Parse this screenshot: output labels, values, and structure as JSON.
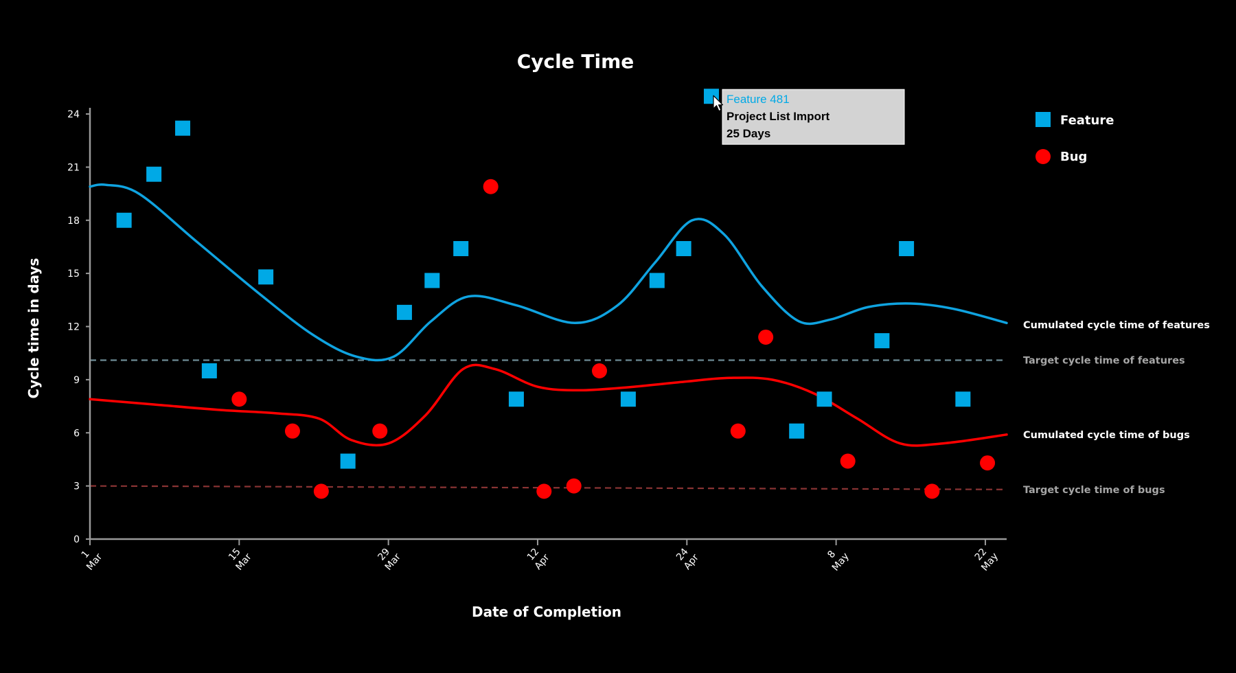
{
  "chart_data": {
    "type": "scatter",
    "title": "Cycle Time",
    "xlabel": "Date of Completion",
    "ylabel": "Cycle time in days",
    "ylim": [
      0,
      24
    ],
    "y_ticks": [
      "0",
      "3",
      "6",
      "9",
      "12",
      "15",
      "18",
      "21",
      "24"
    ],
    "x_range_days": [
      0,
      86
    ],
    "x_ticks": [
      {
        "day": 0,
        "line1": "1",
        "line2": "Mar"
      },
      {
        "day": 14,
        "line1": "15",
        "line2": "Mar"
      },
      {
        "day": 28,
        "line1": "29",
        "line2": "Mar"
      },
      {
        "day": 42,
        "line1": "12",
        "line2": "Apr"
      },
      {
        "day": 56,
        "line1": "24",
        "line2": "Apr"
      },
      {
        "day": 70,
        "line1": "8",
        "line2": "May"
      },
      {
        "day": 84,
        "line1": "22",
        "line2": "May"
      }
    ],
    "series": [
      {
        "name": "Feature",
        "marker": "square",
        "color": "#00a9e6",
        "points": [
          {
            "day": 3.2,
            "value": 18
          },
          {
            "day": 6.0,
            "value": 20.6
          },
          {
            "day": 8.7,
            "value": 23.2
          },
          {
            "day": 11.2,
            "value": 9.5
          },
          {
            "day": 16.5,
            "value": 14.8
          },
          {
            "day": 24.2,
            "value": 4.4
          },
          {
            "day": 29.5,
            "value": 12.8
          },
          {
            "day": 32.1,
            "value": 14.6
          },
          {
            "day": 34.8,
            "value": 16.4
          },
          {
            "day": 40.0,
            "value": 7.9
          },
          {
            "day": 50.5,
            "value": 7.9
          },
          {
            "day": 53.2,
            "value": 14.6
          },
          {
            "day": 55.7,
            "value": 16.4
          },
          {
            "day": 58.3,
            "value": 25
          },
          {
            "day": 66.3,
            "value": 6.1
          },
          {
            "day": 68.9,
            "value": 7.9
          },
          {
            "day": 74.3,
            "value": 11.2
          },
          {
            "day": 76.6,
            "value": 16.4
          },
          {
            "day": 81.9,
            "value": 7.9
          }
        ]
      },
      {
        "name": "Bug",
        "marker": "circle",
        "color": "#ff0000",
        "points": [
          {
            "day": 14.0,
            "value": 7.9
          },
          {
            "day": 19.0,
            "value": 6.1
          },
          {
            "day": 21.7,
            "value": 2.7
          },
          {
            "day": 27.2,
            "value": 6.1
          },
          {
            "day": 37.6,
            "value": 19.9
          },
          {
            "day": 42.6,
            "value": 2.7
          },
          {
            "day": 45.4,
            "value": 3.0
          },
          {
            "day": 47.8,
            "value": 9.5
          },
          {
            "day": 60.8,
            "value": 6.1
          },
          {
            "day": 63.4,
            "value": 11.4
          },
          {
            "day": 71.1,
            "value": 4.4
          },
          {
            "day": 79.0,
            "value": 2.7
          },
          {
            "day": 84.2,
            "value": 4.3
          }
        ]
      }
    ],
    "trend_lines": [
      {
        "name": "Cumulated cycle time of features",
        "color": "#0fa3e0",
        "points": [
          {
            "day": 0,
            "value": 19.9
          },
          {
            "day": 1.5,
            "value": 20.0
          },
          {
            "day": 4.6,
            "value": 19.5
          },
          {
            "day": 10,
            "value": 16.8
          },
          {
            "day": 16,
            "value": 13.8
          },
          {
            "day": 21,
            "value": 11.5
          },
          {
            "day": 25,
            "value": 10.3
          },
          {
            "day": 28.5,
            "value": 10.3
          },
          {
            "day": 32,
            "value": 12.3
          },
          {
            "day": 35.5,
            "value": 13.7
          },
          {
            "day": 40,
            "value": 13.2
          },
          {
            "day": 45.5,
            "value": 12.2
          },
          {
            "day": 49.5,
            "value": 13.2
          },
          {
            "day": 53,
            "value": 15.6
          },
          {
            "day": 56.5,
            "value": 18.0
          },
          {
            "day": 59.5,
            "value": 17.2
          },
          {
            "day": 63,
            "value": 14.3
          },
          {
            "day": 66.5,
            "value": 12.3
          },
          {
            "day": 69.5,
            "value": 12.4
          },
          {
            "day": 73,
            "value": 13.1
          },
          {
            "day": 77,
            "value": 13.3
          },
          {
            "day": 81,
            "value": 13.0
          },
          {
            "day": 86,
            "value": 12.2
          }
        ]
      },
      {
        "name": "Cumulated cycle time of bugs",
        "color": "#ff0000",
        "points": [
          {
            "day": 0,
            "value": 7.9
          },
          {
            "day": 6,
            "value": 7.6
          },
          {
            "day": 12,
            "value": 7.3
          },
          {
            "day": 17.5,
            "value": 7.1
          },
          {
            "day": 21.5,
            "value": 6.8
          },
          {
            "day": 24.5,
            "value": 5.6
          },
          {
            "day": 28,
            "value": 5.4
          },
          {
            "day": 31.5,
            "value": 7.0
          },
          {
            "day": 35,
            "value": 9.6
          },
          {
            "day": 38,
            "value": 9.6
          },
          {
            "day": 42,
            "value": 8.6
          },
          {
            "day": 46,
            "value": 8.4
          },
          {
            "day": 51,
            "value": 8.6
          },
          {
            "day": 56,
            "value": 8.9
          },
          {
            "day": 60,
            "value": 9.1
          },
          {
            "day": 64,
            "value": 9.0
          },
          {
            "day": 68,
            "value": 8.2
          },
          {
            "day": 72,
            "value": 6.8
          },
          {
            "day": 76,
            "value": 5.4
          },
          {
            "day": 80,
            "value": 5.4
          },
          {
            "day": 86,
            "value": 5.9
          }
        ]
      }
    ],
    "target_lines": [
      {
        "name": "Target cycle time of features",
        "value": 10.1,
        "color": "#6e8c96"
      },
      {
        "name": "Target cycle time of bugs",
        "values": [
          3.0,
          2.8
        ],
        "color": "#8a3434"
      }
    ],
    "legend": {
      "position": "top-right",
      "items": [
        {
          "label": "Feature",
          "marker": "square",
          "color": "#00a9e6"
        },
        {
          "label": "Bug",
          "marker": "circle",
          "color": "#ff0000"
        }
      ]
    },
    "annotations": [
      {
        "text": "Cumulated cycle time of features",
        "anchor_value": 12.1,
        "color": "#ffffff"
      },
      {
        "text": "Target cycle time of features",
        "anchor_value": 10.1,
        "color": "#a6a6a6"
      },
      {
        "text": "Cumulated cycle time of bugs",
        "anchor_value": 5.9,
        "color": "#ffffff"
      },
      {
        "text": "Target cycle time of bugs",
        "anchor_value": 2.8,
        "color": "#a6a6a6"
      }
    ],
    "tooltip": {
      "anchor_day": 58.3,
      "anchor_value": 25,
      "id": "Feature 481",
      "name": "Project List Import",
      "duration": "25 Days",
      "id_color": "#00a9e6"
    }
  }
}
